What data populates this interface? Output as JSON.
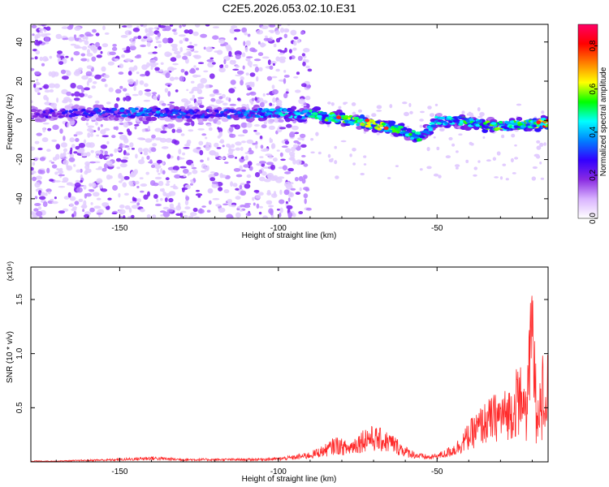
{
  "title": "C2E5.2026.053.02.10.E31",
  "chart_data": [
    {
      "type": "heatmap",
      "title": "C2E5.2026.053.02.10.E31",
      "xlabel": "Height of straight line (km)",
      "ylabel": "Frequency (Hz)",
      "xlim": [
        -178,
        -15
      ],
      "ylim": [
        -50,
        49
      ],
      "xticks": [
        -150,
        -100,
        -50
      ],
      "yticks": [
        -40,
        -20,
        0,
        20,
        40
      ],
      "colorbar": {
        "label": "Normalized spectral amplitude",
        "range": [
          0,
          0.9
        ],
        "ticks": [
          "0.0",
          "0.2",
          "0.4",
          "0.6",
          "0.8"
        ],
        "colormap": [
          "#ffffff",
          "#d9b3ff",
          "#8a2be2",
          "#3300ff",
          "#0080ff",
          "#00ffff",
          "#00ff00",
          "#ffff00",
          "#ff8000",
          "#ff0000",
          "#ff0066"
        ]
      },
      "ridge": {
        "description_free": true,
        "x": [
          -178,
          -160,
          -140,
          -120,
          -100,
          -90,
          -80,
          -70,
          -60,
          -55,
          -50,
          -45,
          -40,
          -30,
          -20,
          -15
        ],
        "frequency": [
          3,
          4,
          4,
          3,
          4,
          3,
          1,
          -2,
          -6,
          -9,
          0,
          0,
          -1,
          -3,
          -2,
          -1
        ],
        "amplitude": [
          0.25,
          0.3,
          0.4,
          0.3,
          0.45,
          0.5,
          0.6,
          0.65,
          0.55,
          0.5,
          0.45,
          0.5,
          0.55,
          0.6,
          0.55,
          0.85
        ]
      },
      "noise_region_x": [
        -178,
        -90
      ]
    },
    {
      "type": "line",
      "xlabel": "Height of straight line (km)",
      "ylabel": "SNR (10 * v/v)",
      "multiplier": "(x10⁴)",
      "xlim": [
        -178,
        -15
      ],
      "ylim": [
        0,
        1.8
      ],
      "xticks": [
        -150,
        -100,
        -50
      ],
      "yticks": [
        0.5,
        1.0,
        1.5
      ],
      "color": "#ff2a2a",
      "series": [
        {
          "x": [
            -178,
            -170,
            -160,
            -150,
            -140,
            -130,
            -120,
            -110,
            -100,
            -95,
            -90,
            -85,
            -82,
            -78,
            -72,
            -68,
            -64,
            -60,
            -56,
            -52,
            -48,
            -44,
            -40,
            -36,
            -32,
            -28,
            -24,
            -22,
            -20,
            -19,
            -18,
            -17,
            -16,
            -15
          ],
          "values": [
            0.01,
            0.01,
            0.02,
            0.03,
            0.05,
            0.03,
            0.03,
            0.03,
            0.04,
            0.06,
            0.09,
            0.16,
            0.23,
            0.18,
            0.33,
            0.3,
            0.25,
            0.14,
            0.08,
            0.06,
            0.1,
            0.18,
            0.35,
            0.5,
            0.6,
            0.65,
            0.78,
            0.55,
            1.5,
            0.8,
            0.55,
            1.02,
            0.45,
            0.9
          ]
        }
      ]
    }
  ]
}
